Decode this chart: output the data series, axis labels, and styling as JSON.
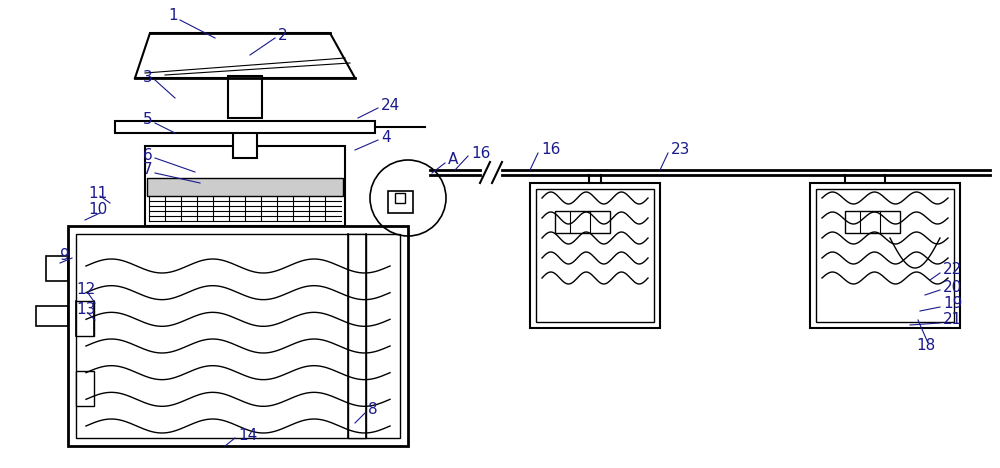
{
  "bg_color": "#ffffff",
  "line_color": "#000000",
  "label_color": "#1a1a8c",
  "fig_width": 10.0,
  "fig_height": 4.68,
  "dpi": 100
}
